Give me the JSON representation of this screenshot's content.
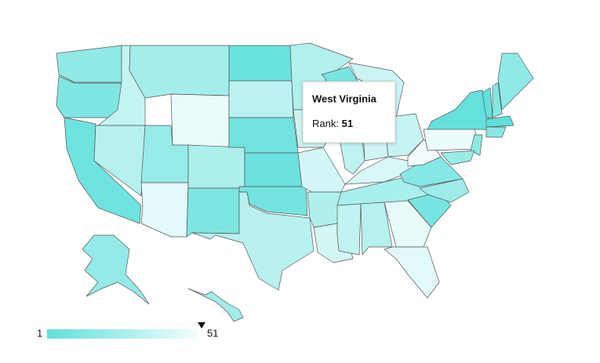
{
  "chart_data": {
    "type": "map",
    "values": [
      18,
      12,
      6,
      35,
      30,
      24,
      48,
      20,
      46,
      27,
      11,
      4,
      32,
      7,
      5,
      8,
      31,
      29,
      38,
      40,
      28,
      41,
      10,
      33,
      37,
      39,
      36,
      42,
      26,
      34,
      30,
      47,
      45,
      9,
      22,
      14,
      51,
      49,
      3,
      2,
      13,
      17,
      1,
      15,
      16,
      21,
      19,
      23
    ],
    "colorlim": [
      1,
      51
    ],
    "colors": [
      "#5fe0dc",
      "#f3fdfd"
    ],
    "tooltip": {
      "title": "West Virginia",
      "label": "Rank:",
      "value": 51
    }
  }
}
